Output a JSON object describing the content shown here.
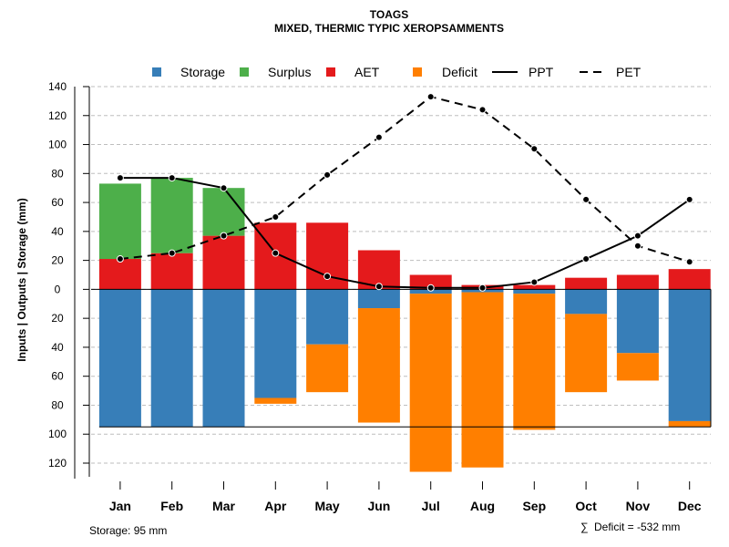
{
  "colors": {
    "storage": "#377EB8",
    "surplus": "#4DAF4A",
    "aet": "#E41A1C",
    "deficit": "#FF7F00",
    "line": "#000000",
    "grid": "#BEBEBE"
  },
  "chart_data": {
    "type": "bar",
    "title": "TOAGS",
    "subtitle": "MIXED, THERMIC TYPIC XEROPSAMMENTS",
    "ylabel": "Inputs | Outputs | Storage    (mm)",
    "ylim": [
      -130,
      140
    ],
    "yticks": [
      140,
      120,
      100,
      80,
      60,
      40,
      20,
      0,
      -20,
      -40,
      -60,
      -80,
      -100,
      -120
    ],
    "ytick_labels": [
      "140",
      "120",
      "100",
      "80",
      "60",
      "40",
      "20",
      "0",
      "20",
      "40",
      "60",
      "80",
      "100",
      "120"
    ],
    "grid": true,
    "legend_position": "top",
    "legend": [
      "Storage",
      "Surplus",
      "AET",
      "Deficit",
      "PPT",
      "PET"
    ],
    "categories": [
      "Jan",
      "Feb",
      "Mar",
      "Apr",
      "May",
      "Jun",
      "Jul",
      "Aug",
      "Sep",
      "Oct",
      "Nov",
      "Dec"
    ],
    "series": [
      {
        "name": "AET",
        "values": [
          21,
          25,
          37,
          46,
          46,
          27,
          10,
          3,
          3,
          8,
          10,
          14
        ]
      },
      {
        "name": "Surplus",
        "values": [
          52,
          52,
          33,
          0,
          0,
          0,
          0,
          0,
          0,
          0,
          0,
          0
        ]
      },
      {
        "name": "Storage",
        "values": [
          95,
          95,
          95,
          75,
          38,
          13,
          3,
          2,
          3,
          17,
          44,
          91
        ]
      },
      {
        "name": "Deficit",
        "values": [
          0,
          0,
          0,
          4,
          33,
          79,
          123,
          121,
          94,
          54,
          19,
          4
        ]
      },
      {
        "name": "PPT",
        "values": [
          77,
          77,
          70,
          25,
          9,
          2,
          1,
          1,
          5,
          21,
          37,
          62
        ]
      },
      {
        "name": "PET",
        "values": [
          21,
          25,
          37,
          50,
          79,
          105,
          133,
          124,
          97,
          62,
          30,
          19
        ]
      }
    ],
    "storage_capacity": 95,
    "footer_left": "Storage: 95 mm",
    "footer_right_symbol": "∑",
    "footer_right": "Deficit = -532 mm"
  }
}
